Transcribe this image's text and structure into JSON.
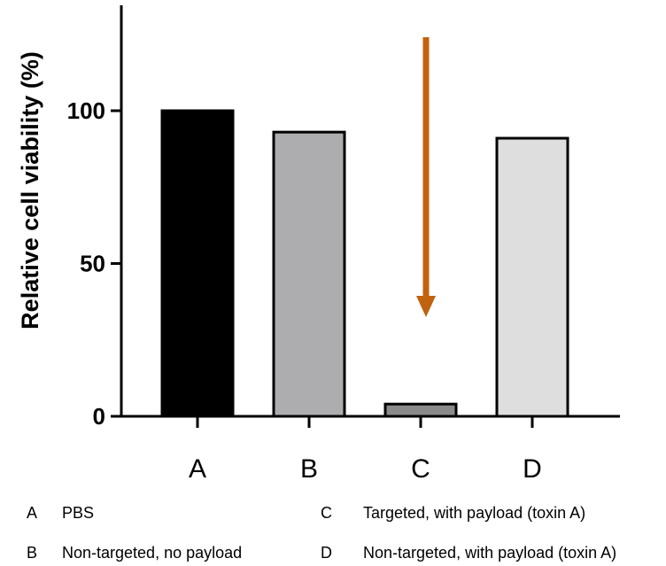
{
  "chart_data": {
    "type": "bar",
    "ylabel": "Relative cell viability (%)",
    "categories": [
      "A",
      "B",
      "C",
      "D"
    ],
    "values": [
      100,
      93,
      4,
      91
    ],
    "bar_colors": [
      "#000000",
      "#adadaf",
      "#8a8a8a",
      "#dededf"
    ],
    "ylim": [
      0,
      135
    ],
    "yticks": [
      0,
      50,
      100
    ],
    "grid": false,
    "annotation_color": "#c0620e",
    "annotation": "downward arrow pointing to bar C"
  },
  "legend": [
    {
      "key": "A",
      "label": "PBS"
    },
    {
      "key": "B",
      "label": "Non-targeted, no payload"
    },
    {
      "key": "C",
      "label": "Targeted, with payload (toxin A)"
    },
    {
      "key": "D",
      "label": "Non-targeted, with payload (toxin A)"
    }
  ]
}
